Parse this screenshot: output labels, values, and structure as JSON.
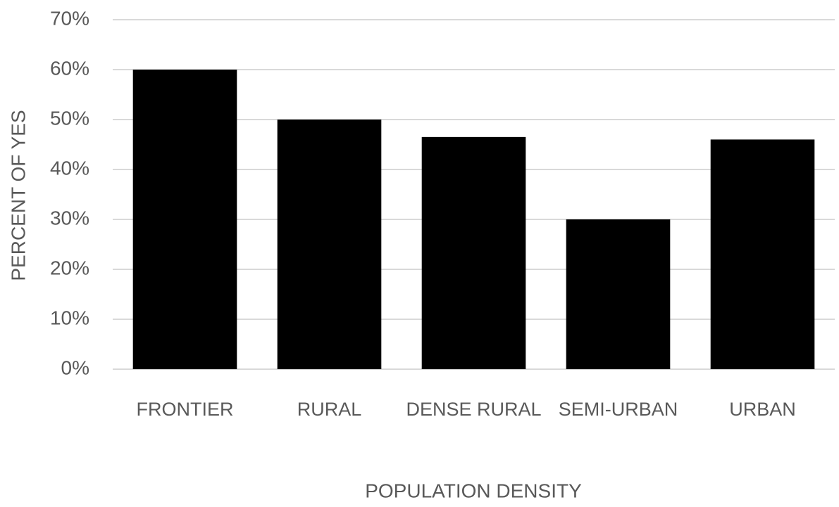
{
  "chart_data": {
    "type": "bar",
    "xlabel": "POPULATION DENSITY",
    "ylabel": "PERCENT OF YES",
    "categories": [
      "FRONTIER",
      "RURAL",
      "DENSE RURAL",
      "SEMI-URBAN",
      "URBAN"
    ],
    "values": [
      60,
      50,
      46.5,
      30,
      46
    ],
    "color": "#000000",
    "ylim": [
      0,
      70
    ],
    "yticks": [
      {
        "value": 0,
        "label": "0%"
      },
      {
        "value": 10,
        "label": "10%"
      },
      {
        "value": 20,
        "label": "20%"
      },
      {
        "value": 30,
        "label": "30%"
      },
      {
        "value": 40,
        "label": "40%"
      },
      {
        "value": 50,
        "label": "50%"
      },
      {
        "value": 60,
        "label": "60%"
      },
      {
        "value": 70,
        "label": "70%"
      }
    ],
    "grid": true
  }
}
